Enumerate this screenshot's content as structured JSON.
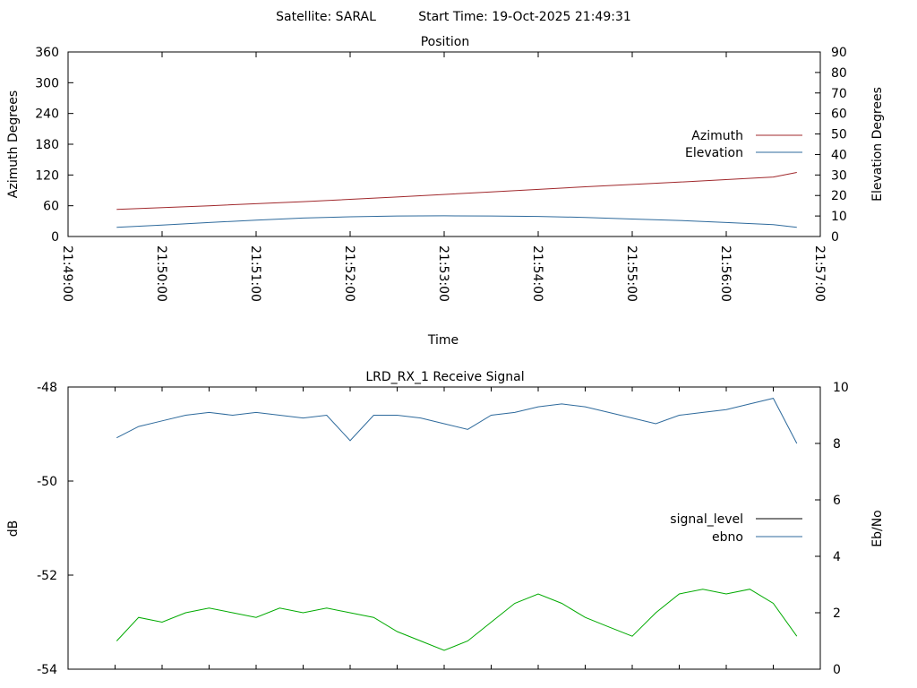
{
  "header": {
    "satellite": "Satellite: SARAL",
    "start_time": "Start Time: 19-Oct-2025 21:49:31"
  },
  "colors": {
    "azimuth": "#a0282c",
    "elevation": "#2e6a9c",
    "signal_level": "#00aa00",
    "ebno": "#2e6a9c",
    "legend_signal_level": "#000000"
  },
  "chart_data": [
    {
      "type": "line",
      "title": "Position",
      "xlabel": "Time",
      "ylabel": "Azimuth Degrees",
      "y2label": "Elevation Degrees",
      "xlim": [
        "21:49:00",
        "21:57:00"
      ],
      "ylim": [
        0,
        360
      ],
      "y2lim": [
        0,
        90
      ],
      "x_ticks": [
        "21:49:00",
        "21:50:00",
        "21:51:00",
        "21:52:00",
        "21:53:00",
        "21:54:00",
        "21:55:00",
        "21:56:00",
        "21:57:00"
      ],
      "y_ticks": [
        "0",
        "60",
        "120",
        "180",
        "240",
        "300",
        "360"
      ],
      "y2_ticks": [
        "0",
        "10",
        "20",
        "30",
        "40",
        "50",
        "60",
        "70",
        "80",
        "90"
      ],
      "legend": "right",
      "series": [
        {
          "name": "Azimuth",
          "axis": "y",
          "x": [
            "21:49:31",
            "21:50:30",
            "21:51:30",
            "21:52:30",
            "21:53:30",
            "21:54:30",
            "21:55:30",
            "21:56:30",
            "21:56:45"
          ],
          "values": [
            53,
            60,
            68,
            77,
            87,
            97,
            106,
            116,
            125
          ]
        },
        {
          "name": "Elevation",
          "axis": "y2",
          "x": [
            "21:49:31",
            "21:50:00",
            "21:50:30",
            "21:51:00",
            "21:51:30",
            "21:52:00",
            "21:52:30",
            "21:53:00",
            "21:53:30",
            "21:54:00",
            "21:54:30",
            "21:55:00",
            "21:55:30",
            "21:56:00",
            "21:56:30",
            "21:56:45"
          ],
          "values": [
            4.5,
            5.6,
            6.8,
            8.0,
            9.0,
            9.6,
            10.0,
            10.1,
            10.0,
            9.8,
            9.3,
            8.5,
            7.8,
            6.8,
            5.8,
            4.5
          ]
        }
      ]
    },
    {
      "type": "line",
      "title": "LRD_RX_1 Receive Signal",
      "ylabel": "dB",
      "y2label": "Eb/No",
      "xlim": [
        "21:49:00",
        "21:57:00"
      ],
      "ylim": [
        -54,
        -48
      ],
      "y2lim": [
        0,
        10
      ],
      "y_ticks": [
        "-54",
        "-52",
        "-50",
        "-48"
      ],
      "y2_ticks": [
        "0",
        "2",
        "4",
        "6",
        "8",
        "10"
      ],
      "legend": "right",
      "series": [
        {
          "name": "signal_level",
          "axis": "y",
          "x": [
            "21:49:31",
            "21:49:45",
            "21:50:00",
            "21:50:15",
            "21:50:30",
            "21:50:45",
            "21:51:00",
            "21:51:15",
            "21:51:30",
            "21:51:45",
            "21:52:00",
            "21:52:15",
            "21:52:30",
            "21:52:45",
            "21:53:00",
            "21:53:15",
            "21:53:30",
            "21:53:45",
            "21:54:00",
            "21:54:15",
            "21:54:30",
            "21:54:45",
            "21:55:00",
            "21:55:15",
            "21:55:30",
            "21:55:45",
            "21:56:00",
            "21:56:15",
            "21:56:30",
            "21:56:45"
          ],
          "values": [
            -53.4,
            -52.9,
            -53.0,
            -52.8,
            -52.7,
            -52.8,
            -52.9,
            -52.7,
            -52.8,
            -52.7,
            -52.8,
            -52.9,
            -53.2,
            -53.4,
            -53.6,
            -53.4,
            -53.0,
            -52.6,
            -52.4,
            -52.6,
            -52.9,
            -53.1,
            -53.3,
            -52.8,
            -52.4,
            -52.3,
            -52.4,
            -52.3,
            -52.6,
            -53.3
          ]
        },
        {
          "name": "ebno",
          "axis": "y2",
          "x": [
            "21:49:31",
            "21:49:45",
            "21:50:00",
            "21:50:15",
            "21:50:30",
            "21:50:45",
            "21:51:00",
            "21:51:15",
            "21:51:30",
            "21:51:45",
            "21:52:00",
            "21:52:15",
            "21:52:30",
            "21:52:45",
            "21:53:00",
            "21:53:15",
            "21:53:30",
            "21:53:45",
            "21:54:00",
            "21:54:15",
            "21:54:30",
            "21:54:45",
            "21:55:00",
            "21:55:15",
            "21:55:30",
            "21:55:45",
            "21:56:00",
            "21:56:15",
            "21:56:30",
            "21:56:45"
          ],
          "values": [
            8.2,
            8.6,
            8.8,
            9.0,
            9.1,
            9.0,
            9.1,
            9.0,
            8.9,
            9.0,
            8.1,
            9.0,
            9.0,
            8.9,
            8.7,
            8.5,
            9.0,
            9.1,
            9.3,
            9.4,
            9.3,
            9.1,
            8.9,
            8.7,
            9.0,
            9.1,
            9.2,
            9.4,
            9.6,
            8.0
          ]
        }
      ]
    }
  ]
}
